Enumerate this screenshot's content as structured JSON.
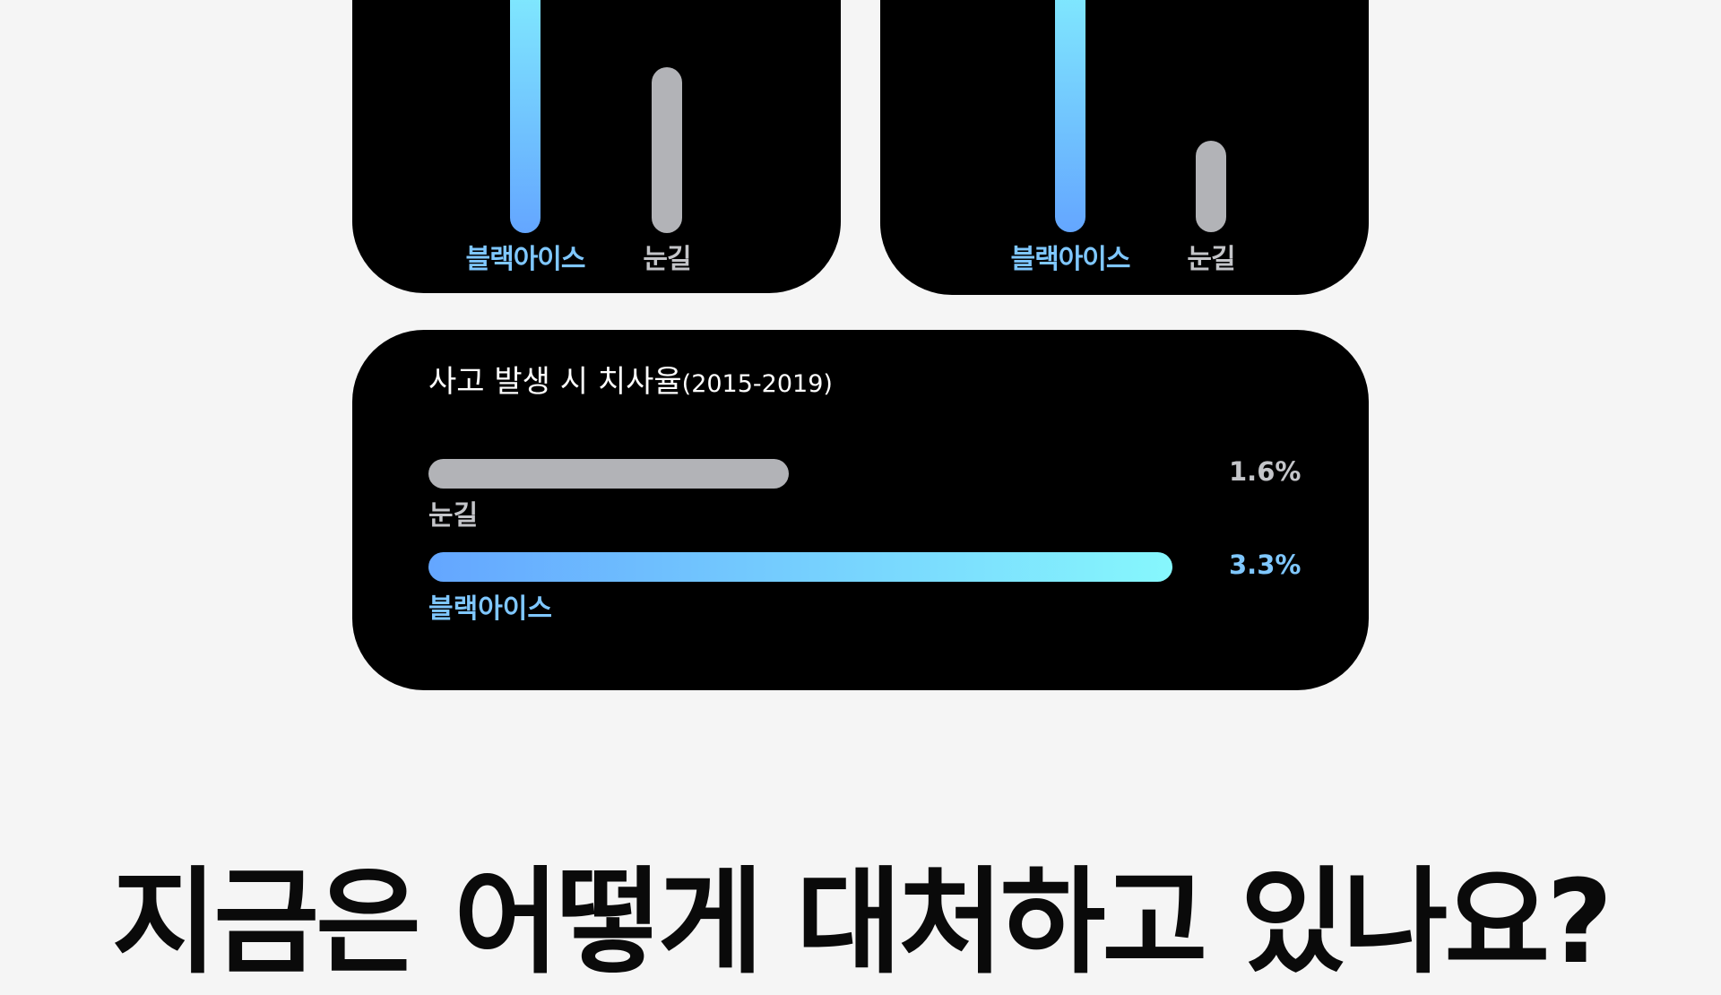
{
  "chart_data": [
    {
      "type": "bar",
      "orientation": "vertical",
      "categories": [
        "블랙아이스",
        "눈길"
      ],
      "values": [
        100,
        56
      ],
      "colors": [
        "#64a6ff",
        "#b2b3b7"
      ]
    },
    {
      "type": "bar",
      "orientation": "vertical",
      "categories": [
        "블랙아이스",
        "눈길"
      ],
      "values": [
        100,
        31
      ],
      "colors": [
        "#64a6ff",
        "#b2b3b7"
      ]
    },
    {
      "type": "bar",
      "orientation": "horizontal",
      "title": "사고 발생 시 치사율",
      "subtitle": "(2015-2019)",
      "categories": [
        "눈길",
        "블랙아이스"
      ],
      "values": [
        1.6,
        3.3
      ],
      "value_labels": [
        "1.6%",
        "3.3%"
      ],
      "unit": "%",
      "colors": [
        "#b2b3b7",
        "#64a6ff"
      ]
    }
  ],
  "headline": "지금은 어떻게 대처하고 있나요?"
}
